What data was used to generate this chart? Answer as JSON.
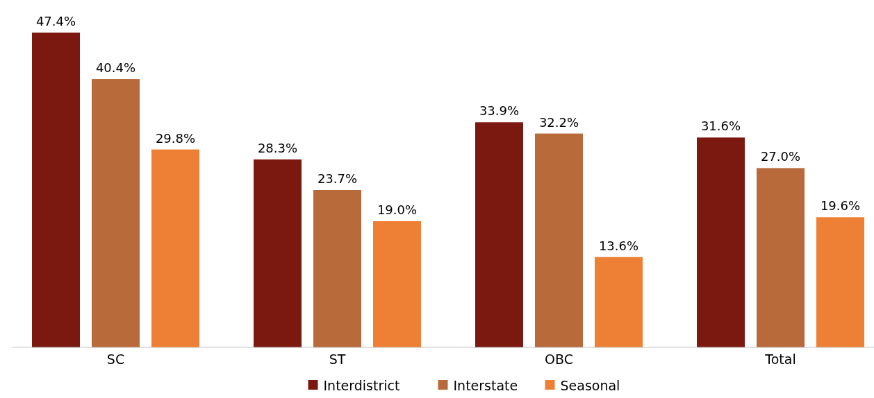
{
  "chart_data": {
    "type": "bar",
    "categories": [
      "SC",
      "ST",
      "OBC",
      "Total"
    ],
    "series": [
      {
        "name": "Interdistrict",
        "color": "#7b1810",
        "values": [
          47.4,
          28.3,
          33.9,
          31.6
        ],
        "value_labels": [
          "47.4%",
          "28.3%",
          "33.9%",
          "31.6%"
        ]
      },
      {
        "name": "Interstate",
        "color": "#b96a3b",
        "values": [
          40.4,
          23.7,
          32.2,
          27.0
        ],
        "value_labels": [
          "40.4%",
          "23.7%",
          "32.2%",
          "27.0%"
        ]
      },
      {
        "name": "Seasonal",
        "color": "#ee8035",
        "values": [
          29.8,
          19.0,
          13.6,
          19.6
        ],
        "value_labels": [
          "29.8%",
          "19.0%",
          "13.6%",
          "19.6%"
        ]
      }
    ],
    "legend": "bottom"
  }
}
